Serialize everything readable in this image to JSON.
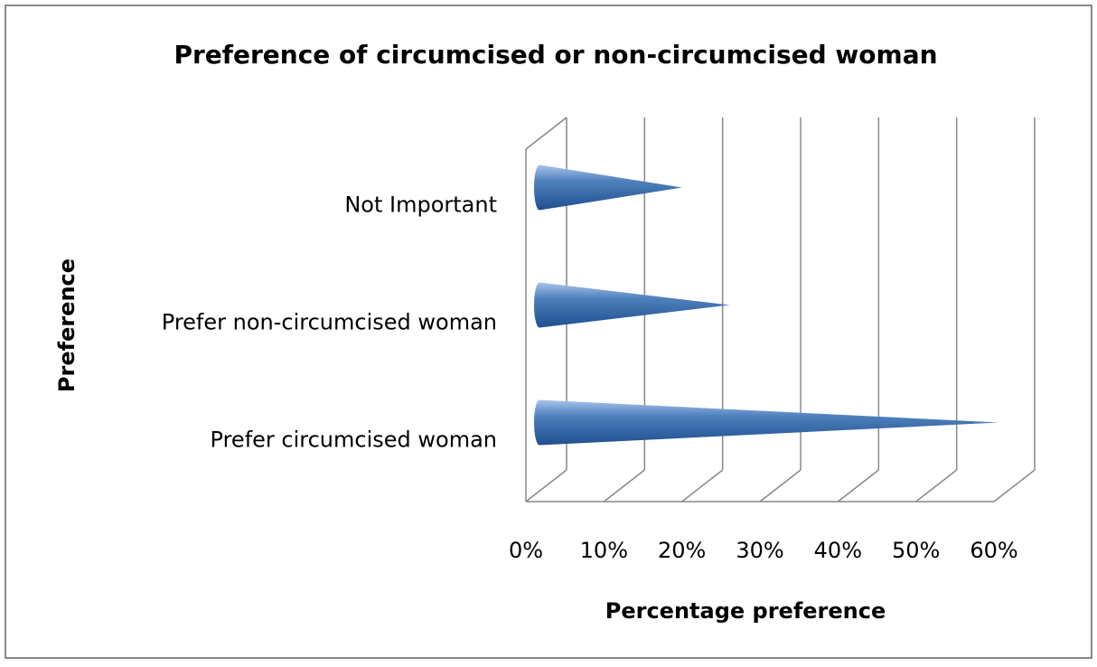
{
  "chart_data": {
    "type": "bar",
    "orientation": "horizontal",
    "title": "Preference of circumcised or non-circumcised woman",
    "x_label": "Percentage preference",
    "y_label": "Preference",
    "categories": [
      "Prefer circumcised woman",
      "Prefer non-circumcised woman",
      "Not Important"
    ],
    "values": [
      58,
      24,
      18
    ],
    "color": "#4f81bd",
    "xlim": [
      0,
      60
    ],
    "xticks": [
      {
        "value": 0,
        "label": "0%"
      },
      {
        "value": 10,
        "label": "10%"
      },
      {
        "value": 20,
        "label": "20%"
      },
      {
        "value": 30,
        "label": "30%"
      },
      {
        "value": 40,
        "label": "40%"
      },
      {
        "value": 50,
        "label": "50%"
      },
      {
        "value": 60,
        "label": "60%"
      }
    ],
    "grid": true
  }
}
